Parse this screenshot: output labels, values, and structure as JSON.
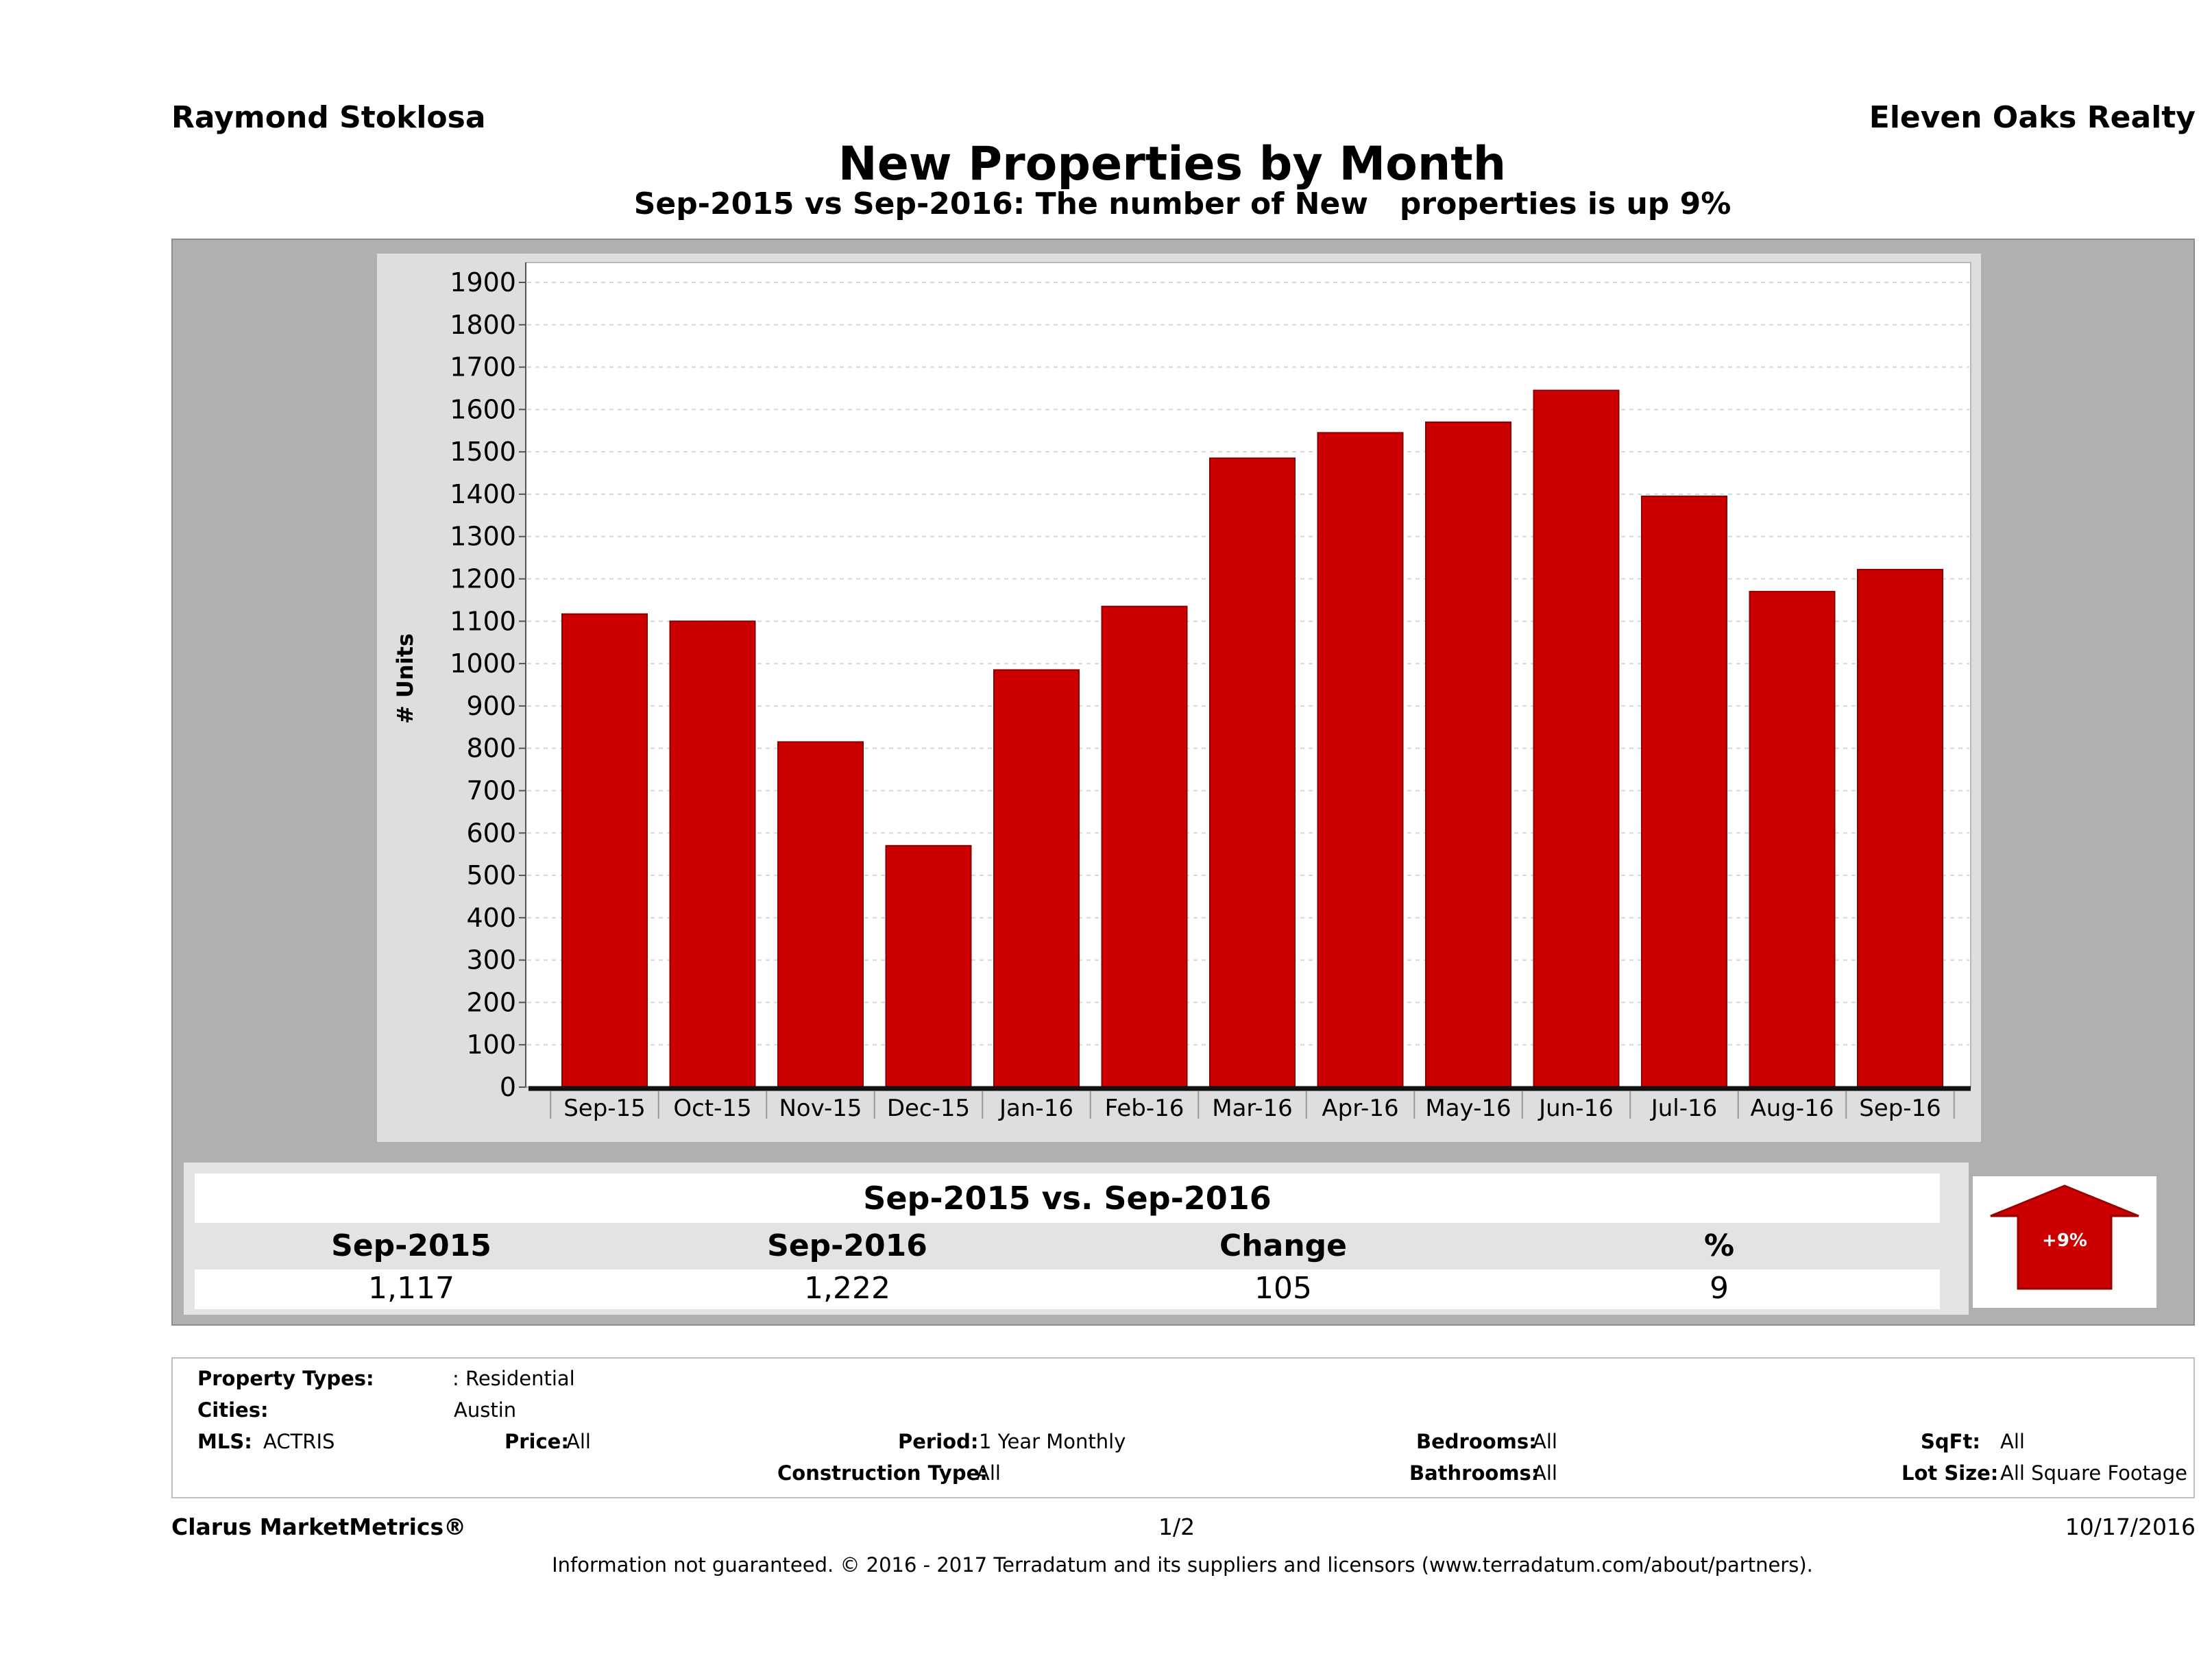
{
  "header": {
    "agent": "Raymond Stoklosa",
    "brokerage": "Eleven Oaks Realty",
    "title": "New Properties by Month",
    "subtitle": "Sep-2015 vs Sep-2016: The number of New   properties is up 9%"
  },
  "chart_data": {
    "type": "bar",
    "ylabel": "# Units",
    "xlabel": "",
    "ylim": [
      0,
      1900
    ],
    "yticks": [
      0,
      100,
      200,
      300,
      400,
      500,
      600,
      700,
      800,
      900,
      1000,
      1100,
      1200,
      1300,
      1400,
      1500,
      1600,
      1700,
      1800,
      1900
    ],
    "grid": true,
    "categories": [
      "Sep-15",
      "Oct-15",
      "Nov-15",
      "Dec-15",
      "Jan-16",
      "Feb-16",
      "Mar-16",
      "Apr-16",
      "May-16",
      "Jun-16",
      "Jul-16",
      "Aug-16",
      "Sep-16"
    ],
    "values": [
      1117,
      1100,
      815,
      570,
      985,
      1135,
      1485,
      1545,
      1570,
      1645,
      1395,
      1170,
      1222
    ],
    "bar_color": "#cc0000"
  },
  "comparison": {
    "header": "Sep-2015 vs. Sep-2016",
    "columns": [
      {
        "label": "Sep-2015",
        "value": "1,117"
      },
      {
        "label": "Sep-2016",
        "value": "1,222"
      },
      {
        "label": "Change",
        "value": "105"
      },
      {
        "label": "%",
        "value": "9"
      }
    ],
    "badge": "+9%",
    "badge_color": "#cc0000"
  },
  "filters": {
    "property_types_label": "Property Types:",
    "property_types_value": ": Residential",
    "cities_label": "Cities:",
    "cities_value": "Austin",
    "mls_label": "MLS:",
    "mls_value": "ACTRIS",
    "price_label": "Price:",
    "price_value": "All",
    "period_label": "Period:",
    "period_value": "1 Year Monthly",
    "construction_label": "Construction Type:",
    "construction_value": "All",
    "bedrooms_label": "Bedrooms:",
    "bedrooms_value": "All",
    "bathrooms_label": "Bathrooms:",
    "bathrooms_value": "All",
    "sqft_label": "SqFt:",
    "sqft_value": "All",
    "lotsize_label": "Lot Size:",
    "lotsize_value": "All Square Footage"
  },
  "footer": {
    "brand": "Clarus MarketMetrics®",
    "page": "1/2",
    "date": "10/17/2016",
    "disclaimer": "Information not guaranteed. © 2016 - 2017 Terradatum and its suppliers and licensors (www.terradatum.com/about/partners)."
  }
}
